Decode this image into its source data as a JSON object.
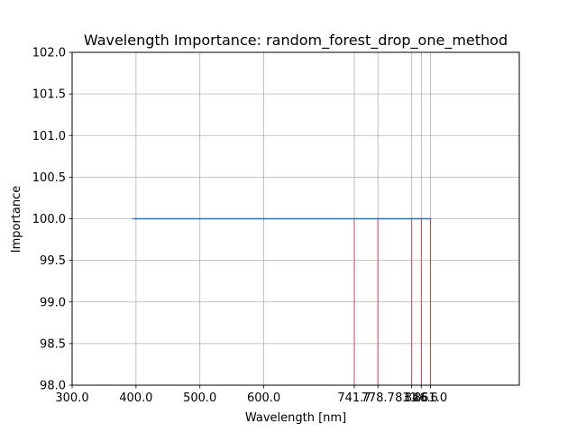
{
  "chart_data": {
    "type": "line",
    "title": "Wavelength Importance: random_forest_drop_one_method",
    "xlabel": "Wavelength [nm]",
    "ylabel": "Importance",
    "xlim": [
      300,
      1000
    ],
    "ylim": [
      98.0,
      102.0
    ],
    "grid": true,
    "x_ticks": [
      {
        "value": 300,
        "label": "300.0"
      },
      {
        "value": 400,
        "label": "400.0"
      },
      {
        "value": 500,
        "label": "500.0"
      },
      {
        "value": 600,
        "label": "600.0"
      },
      {
        "value": 741.7,
        "label": "741.7"
      },
      {
        "value": 778.7,
        "label": "778.7"
      },
      {
        "value": 831.6,
        "label": "831.6"
      },
      {
        "value": 846.6,
        "label": "846.6"
      },
      {
        "value": 861.0,
        "label": "861.0"
      }
    ],
    "y_ticks": [
      {
        "value": 98.0,
        "label": "98.0"
      },
      {
        "value": 98.5,
        "label": "98.5"
      },
      {
        "value": 99.0,
        "label": "99.0"
      },
      {
        "value": 99.5,
        "label": "99.5"
      },
      {
        "value": 100.0,
        "label": "100.0"
      },
      {
        "value": 100.5,
        "label": "100.5"
      },
      {
        "value": 101.0,
        "label": "101.0"
      },
      {
        "value": 101.5,
        "label": "101.5"
      },
      {
        "value": 102.0,
        "label": "102.0"
      }
    ],
    "series": [
      {
        "x": [
          395,
          862
        ],
        "y": [
          100.0,
          100.0
        ],
        "color": "#1f77b4"
      }
    ],
    "markers": {
      "color": "#d62728",
      "x": [
        741.7,
        778.7,
        831.6,
        846.6,
        861.0
      ],
      "y_top": 100.0
    }
  }
}
